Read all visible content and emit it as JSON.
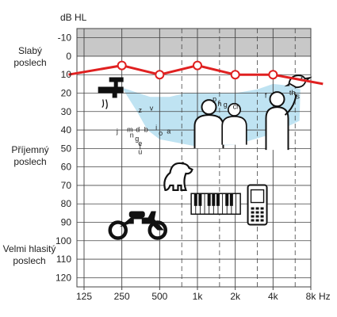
{
  "chart_data": {
    "type": "line",
    "title": "",
    "y_unit": "dB HL",
    "x_unit": "Hz",
    "x_ticks": [
      "125",
      "250",
      "500",
      "1k",
      "2k",
      "4k",
      "8k"
    ],
    "y_ticks": [
      -10,
      0,
      10,
      20,
      30,
      40,
      50,
      60,
      70,
      80,
      90,
      100,
      110,
      120
    ],
    "ylim": [
      -15,
      125
    ],
    "y_inverted": true,
    "grid": true,
    "side_labels": [
      {
        "lines": [
          "Slabý",
          "poslech"
        ],
        "level": 3
      },
      {
        "lines": [
          "Příjemný",
          "poslech"
        ],
        "level": 56
      },
      {
        "lines": [
          "Velmi hlasitý",
          "poslech"
        ],
        "level": 99
      }
    ],
    "series": [
      {
        "color": "#e02020",
        "points": [
          {
            "x": 94,
            "y": 10
          },
          {
            "x": 250,
            "y": 5
          },
          {
            "x": 500,
            "y": 10
          },
          {
            "x": 1000,
            "y": 5
          },
          {
            "x": 2000,
            "y": 10
          },
          {
            "x": 4000,
            "y": 10
          },
          {
            "x": 10000,
            "y": 15
          }
        ]
      }
    ],
    "speech_letters": [
      {
        "t": "z",
        "f": 350,
        "y": 30.5
      },
      {
        "t": "v",
        "f": 430,
        "y": 29.5
      },
      {
        "t": "j",
        "f": 230,
        "y": 42
      },
      {
        "t": "m",
        "f": 290,
        "y": 41
      },
      {
        "t": "d",
        "f": 335,
        "y": 41
      },
      {
        "t": "b",
        "f": 390,
        "y": 41
      },
      {
        "t": "i",
        "f": 470,
        "y": 40
      },
      {
        "t": "o",
        "f": 510,
        "y": 43
      },
      {
        "t": "a",
        "f": 590,
        "y": 42
      },
      {
        "t": "n",
        "f": 300,
        "y": 44
      },
      {
        "t": "g",
        "f": 330,
        "y": 46
      },
      {
        "t": "e",
        "f": 350,
        "y": 48.5
      },
      {
        "t": "l",
        "f": 350,
        "y": 50.5
      },
      {
        "t": "u",
        "f": 350,
        "y": 53
      },
      {
        "t": "p",
        "f": 1370,
        "y": 24.5
      },
      {
        "t": "h",
        "f": 1500,
        "y": 27
      },
      {
        "t": "g",
        "f": 1670,
        "y": 27.5
      },
      {
        "t": "ch",
        "f": 2050,
        "y": 28.5
      },
      {
        "t": "f",
        "f": 3500,
        "y": 22.5
      },
      {
        "t": "th",
        "f": 5700,
        "y": 21
      },
      {
        "t": "s",
        "f": 6300,
        "y": 23
      }
    ],
    "banana_region": [
      [
        250,
        17
      ],
      [
        420,
        22
      ],
      [
        600,
        22
      ],
      [
        800,
        20
      ],
      [
        1200,
        20
      ],
      [
        2000,
        20
      ],
      [
        3000,
        18
      ],
      [
        4000,
        15
      ],
      [
        5500,
        16
      ],
      [
        6600,
        18
      ],
      [
        6500,
        35
      ],
      [
        4000,
        42
      ],
      [
        2000,
        48
      ],
      [
        1000,
        49
      ],
      [
        500,
        45
      ],
      [
        400,
        40
      ],
      [
        330,
        30
      ],
      [
        250,
        17
      ]
    ],
    "icons": [
      {
        "name": "faucet",
        "f": 210,
        "y": 20
      },
      {
        "name": "dog",
        "f": 700,
        "y": 64
      },
      {
        "name": "piano",
        "f": 1400,
        "y": 80
      },
      {
        "name": "phone",
        "f": 3000,
        "y": 81
      },
      {
        "name": "motorcycle",
        "f": 330,
        "y": 90
      },
      {
        "name": "people",
        "f": 1700,
        "y": 37
      },
      {
        "name": "bird",
        "f": 6200,
        "y": 13
      }
    ],
    "colors": {
      "grid": "#444444",
      "gray_band": "#c8c8c8",
      "banana": "#bfe3f2",
      "line": "#e02020"
    }
  }
}
